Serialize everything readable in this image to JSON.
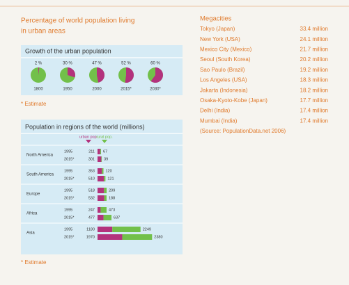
{
  "title_lines": [
    "Percentage of world population living",
    "in urban areas"
  ],
  "urban_growth": {
    "type": "pie",
    "title": "Growth of the urban population",
    "categories": [
      "1800",
      "1950",
      "2000",
      "2015*",
      "2030*"
    ],
    "values": [
      2,
      30,
      47,
      52,
      60
    ],
    "value_labels": [
      "2 %",
      "30 %",
      "47 %",
      "52 %",
      "60 %"
    ],
    "colors": [
      "#b3327d",
      "#72c04a"
    ]
  },
  "note_top": "* Estimate",
  "regions": {
    "type": "bar",
    "title": "Population in regions of the world (millions)",
    "groups": [
      {
        "region": "North America",
        "years": [
          "1995",
          "2015*"
        ]
      },
      {
        "region": "South America",
        "years": [
          "1995",
          "2015*"
        ]
      },
      {
        "region": "Europe",
        "years": [
          "1995",
          "2015*"
        ]
      },
      {
        "region": "Africa",
        "years": [
          "1995",
          "2015*"
        ]
      },
      {
        "region": "Asia",
        "years": [
          "1995",
          "2015*"
        ]
      }
    ],
    "series": [
      {
        "name": "urban pop.",
        "color": "#b3327d",
        "values": [
          211,
          301,
          353,
          510,
          518,
          532,
          247,
          477,
          1180,
          1970
        ]
      },
      {
        "name": "rural pop.",
        "color": "#72c04a",
        "values": [
          67,
          39,
          120,
          121,
          209,
          188,
          473,
          637,
          2249,
          2380
        ]
      }
    ]
  },
  "note_bottom": "* Estimate",
  "megacities": {
    "title": "Megacities",
    "rows": [
      {
        "city": "Tokyo (Japan)",
        "population": "33.4 million"
      },
      {
        "city": "New York (USA)",
        "population": "24.1 million"
      },
      {
        "city": "Mexico City (Mexico)",
        "population": "21.7 million"
      },
      {
        "city": "Seoul (South Korea)",
        "population": "20.2 million"
      },
      {
        "city": "Sao Paulo (Brazil)",
        "population": "19.2 million"
      },
      {
        "city": "Los Angeles (USA)",
        "population": "18.3 million"
      },
      {
        "city": "Jakarta (Indonesia)",
        "population": "18.2 million"
      },
      {
        "city": "Osaka-Kyoto-Kobe (Japan)",
        "population": "17.7 million"
      },
      {
        "city": "Delhi (India)",
        "population": "17.4 million"
      },
      {
        "city": "Mumbai (India)",
        "population": "17.4 million"
      }
    ],
    "source": "(Source: PopulationData.net 2006)"
  }
}
